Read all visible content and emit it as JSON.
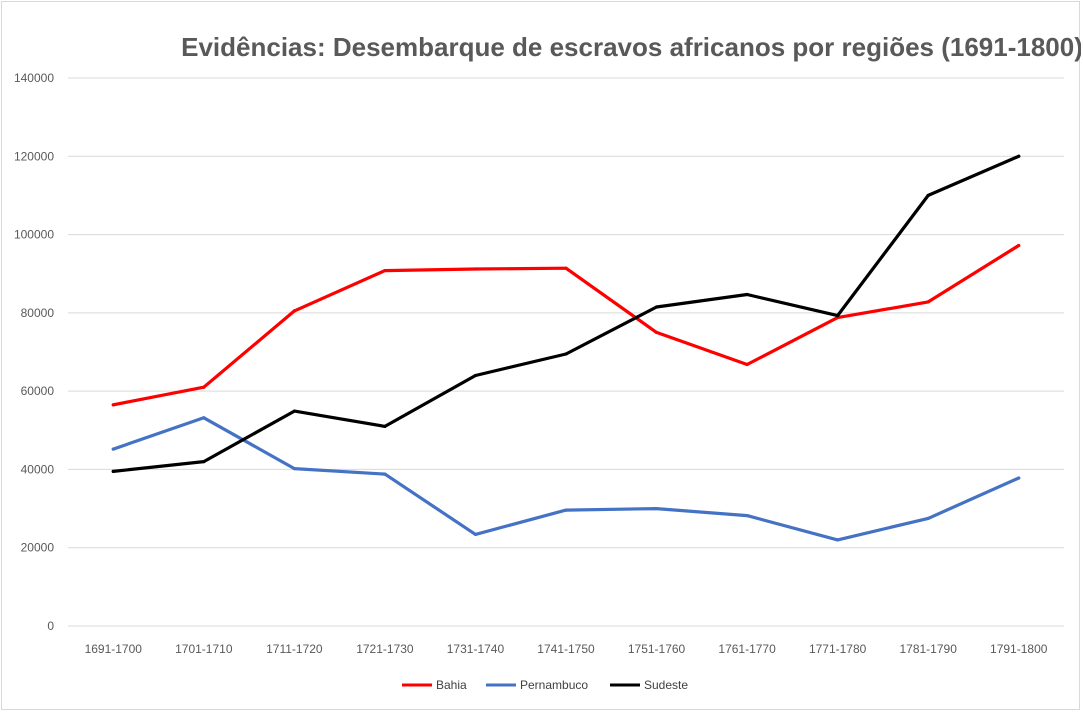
{
  "chart_data": {
    "type": "line",
    "title": "Evidências: Desembarque de escravos africanos por regiões (1691-1800)",
    "xlabel": "",
    "ylabel": "",
    "categories": [
      "1691-1700",
      "1701-1710",
      "1711-1720",
      "1721-1730",
      "1731-1740",
      "1741-1750",
      "1751-1760",
      "1761-1770",
      "1771-1780",
      "1781-1790",
      "1791-1800"
    ],
    "ylim": [
      0,
      140000
    ],
    "yticks": [
      0,
      20000,
      40000,
      60000,
      80000,
      100000,
      120000,
      140000
    ],
    "ytick_labels": [
      "0",
      "20000",
      "40000",
      "60000",
      "80000",
      "100000",
      "120000",
      "140000"
    ],
    "grid": true,
    "legend_position": "bottom",
    "series": [
      {
        "name": "Bahia",
        "color": "#ff0000",
        "values": [
          56500,
          61000,
          80500,
          90800,
          91200,
          91400,
          75000,
          66800,
          78800,
          82800,
          97200
        ]
      },
      {
        "name": "Pernambuco",
        "color": "#4472c4",
        "values": [
          45200,
          53200,
          40200,
          38800,
          23400,
          29600,
          30000,
          28200,
          22000,
          27500,
          37800
        ]
      },
      {
        "name": "Sudeste",
        "color": "#000000",
        "values": [
          39500,
          42000,
          54900,
          51000,
          64000,
          69500,
          81500,
          84700,
          79300,
          110000,
          120000
        ]
      }
    ]
  }
}
